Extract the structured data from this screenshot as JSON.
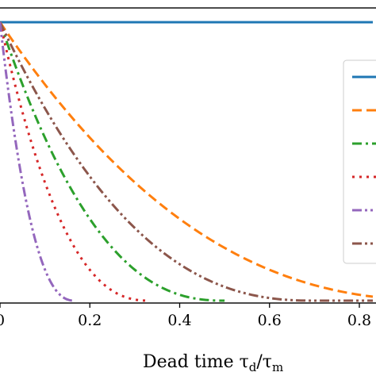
{
  "chart_data": {
    "type": "line",
    "xlabel_main": "Dead time τ",
    "xlabel_sub1": "d",
    "xlabel_slash": "/τ",
    "xlabel_sub2": "m",
    "xlim": [
      0,
      0.83
    ],
    "ylim": [
      0,
      1.0
    ],
    "x_ticks": [
      0.0,
      0.2,
      0.4,
      0.6,
      0.8
    ],
    "x_tick_labels": [
      "0",
      "0.2",
      "0.4",
      "0.6",
      "0.8"
    ],
    "grid": false,
    "legend_position": "right",
    "series": [
      {
        "color": "#1f77b4",
        "dash": "solid",
        "xmax": 0.83,
        "k": 0,
        "shape": "flat"
      },
      {
        "color": "#ff7f0e",
        "dash": "dashed",
        "xmax": 0.83,
        "k": 1.0,
        "shape": "convex"
      },
      {
        "color": "#2ca02c",
        "dash": "dashdot",
        "xmax": 0.5,
        "k": 0.5,
        "shape": "convex"
      },
      {
        "color": "#8c564b",
        "dash": "dashdotdot",
        "xmax": 0.83,
        "k": 0.7,
        "shape": "convex"
      },
      {
        "color": "#d62728",
        "dash": "dotted",
        "xmax": 0.333,
        "k": 0.333,
        "shape": "convex"
      },
      {
        "color": "#9467bd",
        "dash": "dashdotdot",
        "xmax": 0.167,
        "k": 0.167,
        "shape": "convex"
      }
    ],
    "legend_entries": [
      {
        "color": "#1f77b4",
        "dash": "solid"
      },
      {
        "color": "#ff7f0e",
        "dash": "dashed"
      },
      {
        "color": "#2ca02c",
        "dash": "dashdot"
      },
      {
        "color": "#d62728",
        "dash": "dotted"
      },
      {
        "color": "#9467bd",
        "dash": "dashdotdot"
      },
      {
        "color": "#8c564b",
        "dash": "dashdotdot"
      }
    ]
  }
}
